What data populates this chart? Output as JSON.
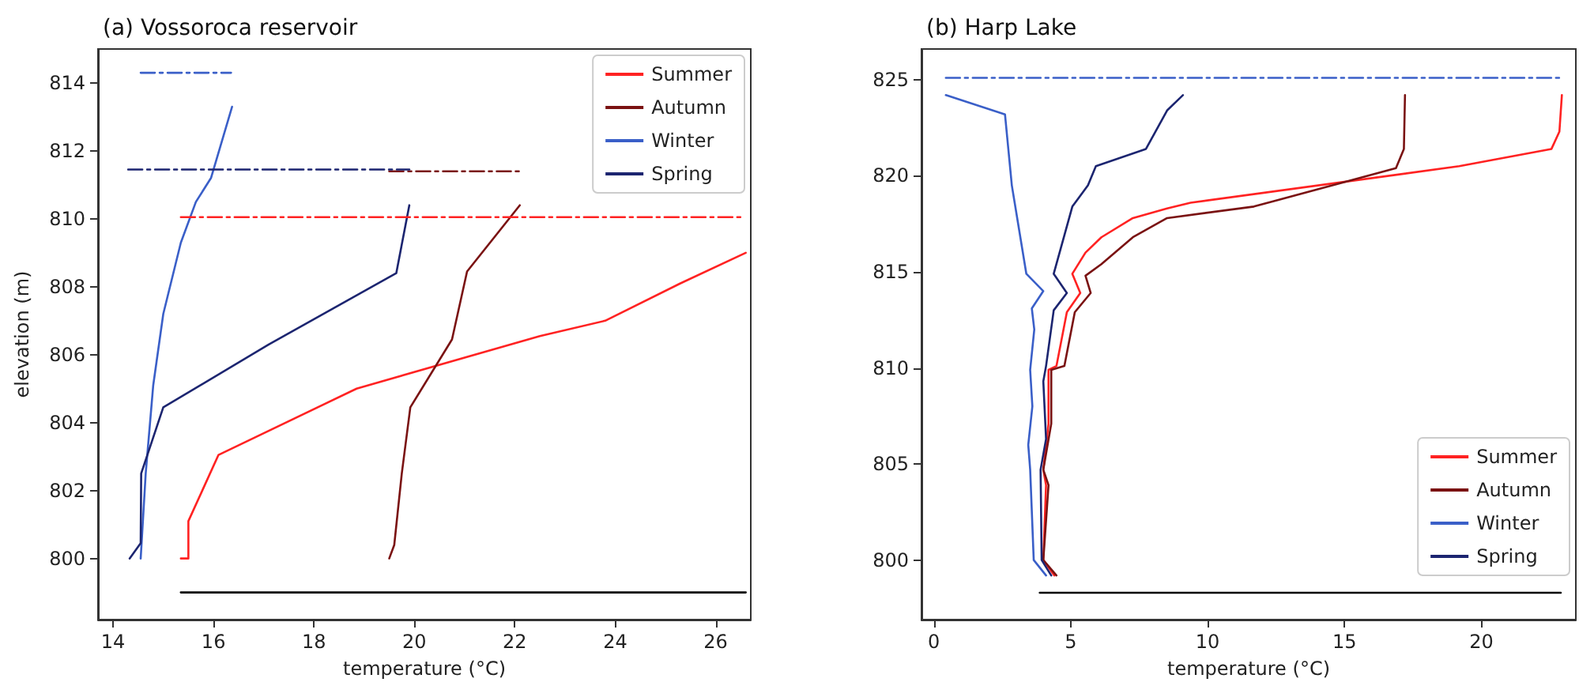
{
  "chart_data": [
    {
      "type": "line",
      "title": "(a) Vossoroca reservoir",
      "xlabel": "temperature (°C)",
      "ylabel": "elevation (m)",
      "xlim": [
        13.7,
        26.7
      ],
      "ylim": [
        798.2,
        815.0
      ],
      "xticks": [
        14,
        16,
        18,
        20,
        22,
        24,
        26
      ],
      "yticks": [
        800,
        802,
        804,
        806,
        808,
        810,
        812,
        814
      ],
      "grid": false,
      "legend": "top right",
      "line_style": "solid",
      "series": [
        {
          "name": "Summer",
          "color": "#ff2222",
          "x": [
            15.35,
            15.5,
            15.5,
            16.1,
            18.85,
            22.5,
            23.8,
            25.3,
            26.6
          ],
          "values": [
            800,
            800,
            801.1,
            803.05,
            805.0,
            806.55,
            807.0,
            808.1,
            809.0
          ]
        },
        {
          "name": "Autumn",
          "color": "#7a1212",
          "x": [
            19.5,
            19.6,
            19.75,
            19.92,
            20.75,
            21.05,
            22.1
          ],
          "values": [
            800,
            800.4,
            802.5,
            804.45,
            806.45,
            808.45,
            810.4
          ]
        },
        {
          "name": "Winter",
          "color": "#3a5fc8",
          "x": [
            14.55,
            14.65,
            14.8,
            15.0,
            15.35,
            15.65,
            15.95,
            16.37
          ],
          "values": [
            800,
            802.5,
            805.1,
            807.2,
            809.3,
            810.5,
            811.2,
            813.3
          ]
        },
        {
          "name": "Spring",
          "color": "#1c2570",
          "x": [
            14.33,
            14.55,
            14.56,
            15.0,
            17.1,
            19.64,
            19.9
          ],
          "values": [
            800,
            800.45,
            802.5,
            804.45,
            806.3,
            808.4,
            810.4
          ]
        },
        {
          "color": "#ff2222",
          "line_style": "dashed",
          "x": [
            15.35,
            26.55
          ],
          "values": [
            810.05,
            810.05
          ]
        },
        {
          "color": "#7a1212",
          "line_style": "dashed",
          "x": [
            19.5,
            22.1
          ],
          "values": [
            811.4,
            811.4
          ]
        },
        {
          "color": "#3a5fc8",
          "line_style": "dashed",
          "x": [
            14.55,
            16.35
          ],
          "values": [
            814.3,
            814.3
          ]
        },
        {
          "color": "#1c2570",
          "line_style": "dashed",
          "x": [
            14.3,
            19.9
          ],
          "values": [
            811.45,
            811.45
          ]
        },
        {
          "color": "#000000",
          "x": [
            15.35,
            26.6
          ],
          "values": [
            799.0,
            799.0
          ]
        }
      ]
    },
    {
      "type": "line",
      "title": "(b) Harp Lake",
      "xlabel": "temperature (°C)",
      "xlim": [
        -0.45,
        23.45
      ],
      "ylim": [
        796.9,
        826.6
      ],
      "xticks": [
        0,
        5,
        10,
        15,
        20
      ],
      "yticks": [
        800,
        805,
        810,
        815,
        820,
        825
      ],
      "grid": false,
      "legend": "bottom right",
      "line_style": "solid",
      "series": [
        {
          "name": "Summer",
          "color": "#ff2222",
          "x": [
            22.94,
            22.85,
            22.56,
            19.19,
            9.38,
            8.52,
            7.27,
            6.12,
            5.54,
            5.06,
            5.35,
            4.86,
            4.48,
            4.19,
            4.19,
            4.0,
            4.1,
            4.0,
            4.4
          ],
          "values": [
            824.2,
            822.3,
            821.4,
            820.5,
            818.6,
            818.3,
            817.8,
            816.8,
            816.0,
            814.9,
            813.9,
            812.9,
            810.1,
            809.9,
            807.1,
            804.7,
            803.9,
            800.0,
            799.2
          ]
        },
        {
          "name": "Autumn",
          "color": "#7a1212",
          "x": [
            17.21,
            17.17,
            16.88,
            11.69,
            8.52,
            7.27,
            6.12,
            5.54,
            5.73,
            5.15,
            4.77,
            4.29,
            4.29,
            4.0,
            4.19,
            4.0,
            4.48
          ],
          "values": [
            824.2,
            821.4,
            820.4,
            818.4,
            817.8,
            816.8,
            815.4,
            814.8,
            813.9,
            812.9,
            810.1,
            809.9,
            807.1,
            804.7,
            803.9,
            800.0,
            799.2
          ]
        },
        {
          "name": "Winter",
          "color": "#3a5fc8",
          "x": [
            0.44,
            2.6,
            2.85,
            3.38,
            4.0,
            3.58,
            3.67,
            3.52,
            3.6,
            3.45,
            3.52,
            3.65,
            4.1
          ],
          "values": [
            824.2,
            823.2,
            819.5,
            814.9,
            814.0,
            813.1,
            812.0,
            809.9,
            808.0,
            806.0,
            804.7,
            800.0,
            799.2
          ]
        },
        {
          "name": "Spring",
          "color": "#1c2570",
          "x": [
            9.1,
            8.52,
            7.75,
            5.92,
            5.63,
            5.06,
            4.38,
            4.86,
            4.38,
            4.1,
            4.0,
            4.1,
            3.9,
            3.94,
            4.29
          ],
          "values": [
            824.2,
            823.4,
            821.4,
            820.5,
            819.5,
            818.4,
            814.9,
            813.9,
            813.0,
            810.1,
            809.3,
            806.3,
            804.7,
            800.0,
            799.2
          ]
        },
        {
          "color": "#3a5fc8",
          "line_style": "dashed",
          "x": [
            0.44,
            22.85
          ],
          "values": [
            825.1,
            825.1
          ]
        },
        {
          "color": "#000000",
          "x": [
            3.87,
            22.9
          ],
          "values": [
            798.3,
            798.3
          ]
        }
      ]
    }
  ]
}
